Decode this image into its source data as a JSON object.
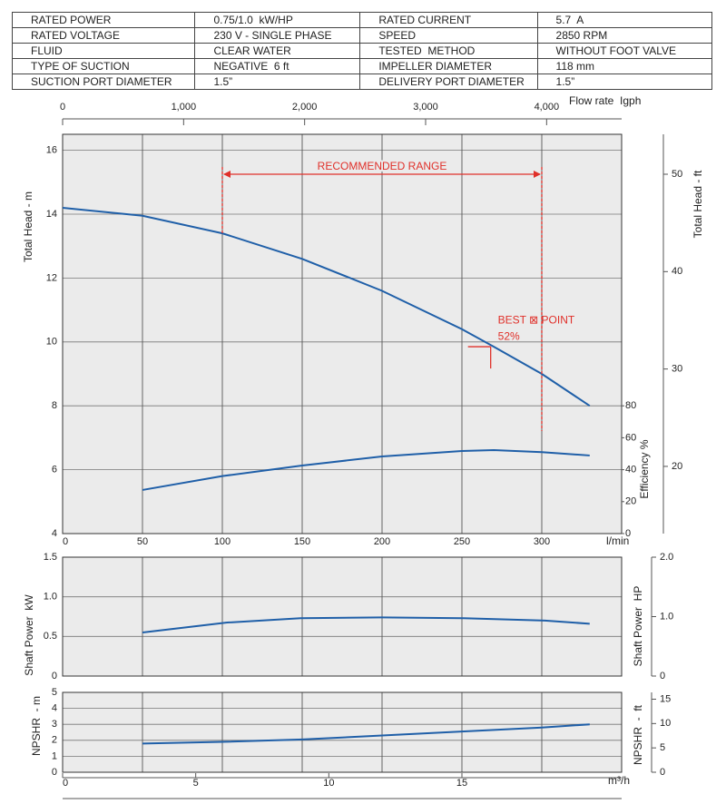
{
  "table": {
    "rows": [
      [
        "RATED POWER",
        "0.75/1.0  kW/HP",
        "RATED CURRENT",
        "5.7  A"
      ],
      [
        "RATED VOLTAGE",
        "230 V - SINGLE PHASE",
        "SPEED",
        "2850 RPM"
      ],
      [
        "FLUID",
        "CLEAR WATER",
        "TESTED  METHOD",
        "WITHOUT FOOT VALVE"
      ],
      [
        "TYPE OF SUCTION",
        "NEGATIVE  6 ft",
        "IMPELLER DIAMETER",
        "118 mm"
      ],
      [
        "SUCTION PORT DIAMETER",
        "1.5”",
        "DELIVERY PORT DIAMETER",
        "1.5”"
      ]
    ]
  },
  "chart_data": [
    {
      "type": "line",
      "ylabel": "Total Head - m",
      "xlabel": "l/min",
      "x2label": "Flow rate  Igph",
      "y2label": "Total Head - ft",
      "y3label": "Efficiency %",
      "xlim": [
        0,
        350
      ],
      "xticks": [
        0,
        50,
        100,
        150,
        200,
        250,
        300
      ],
      "x2lim": [
        0,
        4620
      ],
      "x2ticks": [
        0,
        {
          "value": 1000,
          "label": "1,000"
        },
        {
          "value": 2000,
          "label": "2,000"
        },
        {
          "value": 3000,
          "label": "3,000"
        },
        {
          "value": 4000,
          "label": "4,000"
        }
      ],
      "ylim": [
        4,
        16.5
      ],
      "yticks": [
        4,
        6,
        8,
        10,
        12,
        14,
        16
      ],
      "y2lim": [
        13.1,
        54.1
      ],
      "y2ticks": [
        20,
        30,
        40,
        50
      ],
      "y3lim": [
        0,
        250
      ],
      "y3ticks": [
        0,
        20,
        40,
        60,
        80
      ],
      "grid": true,
      "series": [
        {
          "color": "#1f5fa8",
          "x": [
            0,
            50,
            100,
            150,
            200,
            250,
            270,
            300,
            330
          ],
          "values": [
            14.2,
            13.95,
            13.4,
            12.6,
            11.6,
            10.4,
            9.85,
            9.0,
            8.0
          ]
        },
        {
          "color": "#1f5fa8",
          "axis": "y3",
          "x": [
            50,
            100,
            150,
            200,
            250,
            270,
            300,
            330
          ],
          "values": [
            27.3,
            36,
            42.6,
            48.3,
            51.7,
            52.3,
            51,
            48.9
          ]
        }
      ],
      "recommended_range": {
        "label": "RECOMMENDED RANGE",
        "x": [
          100,
          300
        ]
      },
      "best_point": {
        "label": "BEST ⊠ POINT",
        "value_label": "52%",
        "value": 52,
        "x": 268,
        "y": 9.85
      }
    },
    {
      "type": "line",
      "ylabel": "Shaft Power  kW",
      "y2label": "Shaft Power  HP",
      "xlim": [
        0,
        350
      ],
      "ylim": [
        0,
        1.5
      ],
      "yticks": [
        0,
        0.5,
        {
          "value": 1,
          "label": "1.0"
        },
        1.5
      ],
      "y2lim": [
        0,
        2
      ],
      "y2ticks": [
        0,
        {
          "value": 1,
          "label": "1.0"
        },
        {
          "value": 2,
          "label": "2.0"
        }
      ],
      "grid": true,
      "series": [
        {
          "color": "#1f5fa8",
          "x": [
            50,
            103,
            149,
            200,
            251,
            302,
            330
          ],
          "values": [
            0.55,
            0.675,
            0.73,
            0.74,
            0.73,
            0.7,
            0.66
          ]
        }
      ]
    },
    {
      "type": "line",
      "ylabel": "NPSHR  - m",
      "y2label": "NPSHR  -  ft",
      "xlabel": "m³/h",
      "xlim": [
        0,
        21
      ],
      "xticks": [
        0,
        5,
        10,
        15
      ],
      "ylim": [
        0,
        5
      ],
      "yticks": [
        0,
        1,
        2,
        3,
        4,
        5
      ],
      "y2lim": [
        0,
        16.4
      ],
      "y2ticks": [
        0,
        5,
        10,
        15
      ],
      "grid": true,
      "series": [
        {
          "color": "#1f5fa8",
          "x": [
            3,
            6,
            9,
            12,
            15,
            18,
            19.8
          ],
          "values": [
            1.8,
            1.9,
            2.05,
            2.3,
            2.55,
            2.8,
            3.0
          ]
        }
      ]
    }
  ]
}
